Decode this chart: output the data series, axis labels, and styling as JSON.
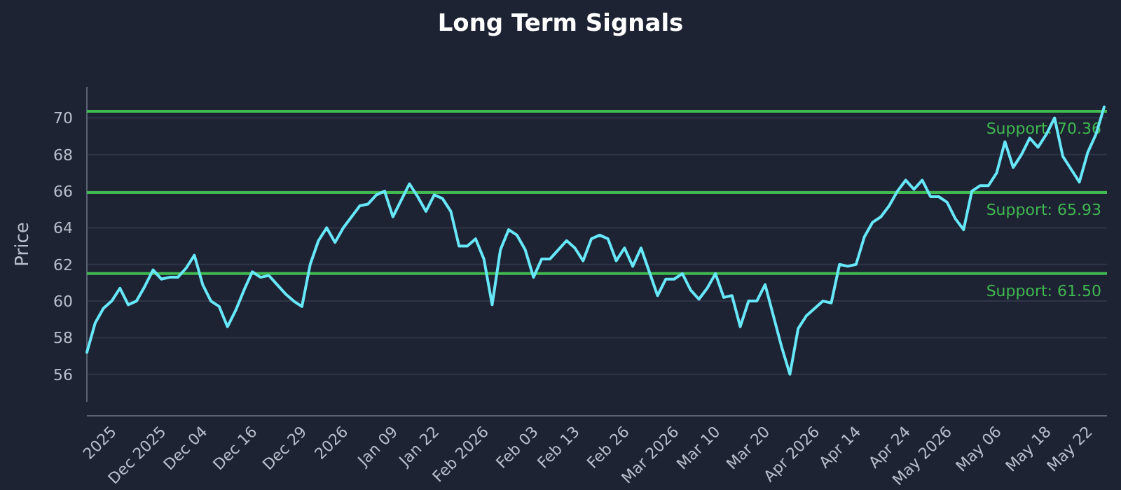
{
  "chart_data": {
    "type": "line",
    "title": "Long Term Signals",
    "ylabel": "Price",
    "categories": [
      null,
      null,
      null,
      "2025",
      null,
      null,
      null,
      null,
      null,
      "Dec 2025",
      null,
      null,
      null,
      null,
      "Dec 04",
      null,
      null,
      null,
      null,
      null,
      "Dec 16",
      null,
      null,
      null,
      null,
      null,
      "Dec 29",
      null,
      null,
      null,
      null,
      "2026",
      null,
      null,
      null,
      null,
      null,
      "Jan 09",
      null,
      null,
      null,
      null,
      "Jan 22",
      null,
      null,
      null,
      null,
      null,
      "Feb 2026",
      null,
      null,
      null,
      null,
      null,
      "Feb 03",
      null,
      null,
      null,
      null,
      "Feb 13",
      null,
      null,
      null,
      null,
      null,
      "Feb 26",
      null,
      null,
      null,
      null,
      null,
      "Mar 2026",
      null,
      null,
      null,
      null,
      "Mar 10",
      null,
      null,
      null,
      null,
      null,
      "Mar 20",
      null,
      null,
      null,
      null,
      null,
      "Apr 2026",
      null,
      null,
      null,
      null,
      "Apr 14",
      null,
      null,
      null,
      null,
      null,
      "Apr 24",
      null,
      null,
      null,
      null,
      "May 2026",
      null,
      null,
      null,
      null,
      null,
      "May 06",
      null,
      null,
      null,
      null,
      null,
      "May 18",
      null,
      null,
      null,
      null,
      "May 22",
      null,
      null
    ],
    "series": [
      {
        "color": "#67e8f9",
        "values": [
          57.2,
          58.8,
          59.6,
          60.0,
          60.7,
          59.8,
          60.0,
          60.8,
          61.7,
          61.2,
          61.3,
          61.3,
          61.8,
          62.5,
          60.9,
          60.0,
          59.7,
          58.6,
          59.5,
          60.6,
          61.6,
          61.3,
          61.4,
          60.9,
          60.4,
          60.0,
          59.7,
          62.0,
          63.3,
          64.0,
          63.2,
          64.0,
          64.6,
          65.2,
          65.3,
          65.8,
          66.0,
          64.6,
          65.5,
          66.4,
          65.7,
          64.9,
          65.8,
          65.6,
          64.9,
          63.0,
          63.0,
          63.4,
          62.3,
          59.8,
          62.8,
          63.9,
          63.6,
          62.8,
          61.3,
          62.3,
          62.3,
          62.8,
          63.3,
          62.9,
          62.2,
          63.4,
          63.6,
          63.4,
          62.2,
          62.9,
          61.9,
          62.9,
          61.6,
          60.3,
          61.2,
          61.2,
          61.5,
          60.6,
          60.1,
          60.7,
          61.5,
          60.2,
          60.3,
          58.6,
          60.0,
          60.0,
          60.9,
          59.2,
          57.5,
          56.0,
          58.5,
          59.2,
          59.6,
          60.0,
          59.9,
          62.0,
          61.9,
          62.0,
          63.5,
          64.3,
          64.6,
          65.2,
          66.0,
          66.6,
          66.1,
          66.6,
          65.7,
          65.7,
          65.4,
          64.5,
          63.9,
          66.0,
          66.3,
          66.3,
          67.0,
          68.7,
          67.3,
          68.0,
          68.9,
          68.4,
          69.1,
          70.0,
          67.9,
          67.2,
          66.5,
          68.1,
          69.1,
          70.6
        ]
      }
    ],
    "ylim": [
      54.5,
      71.7
    ],
    "yticks": [
      56,
      58,
      60,
      62,
      64,
      66,
      68,
      70
    ],
    "grid": "y",
    "marker": "none",
    "line_style": "solid",
    "ref_lines": [
      {
        "axis": "y",
        "value": 70.36,
        "label": "Support: 70.36",
        "color": "#3fb950"
      },
      {
        "axis": "y",
        "value": 65.93,
        "label": "Support: 65.93",
        "color": "#3fb950"
      },
      {
        "axis": "y",
        "value": 61.5,
        "label": "Support: 61.50",
        "color": "#3fb950"
      }
    ]
  }
}
